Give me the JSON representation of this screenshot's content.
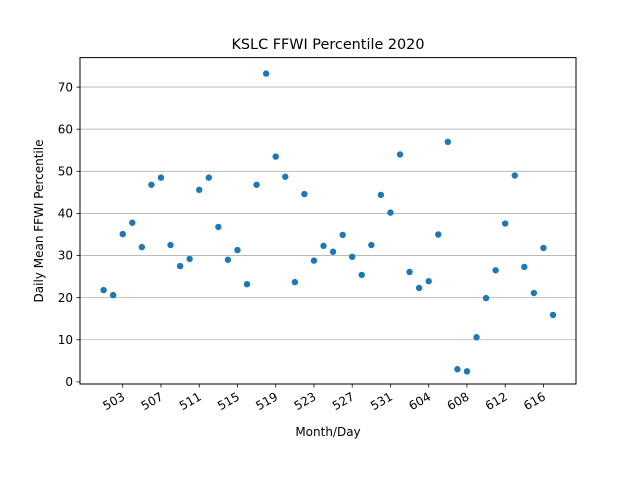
{
  "chart_data": {
    "type": "scatter",
    "title": "KSLC FFWI Percentile 2020",
    "xlabel": "Month/Day",
    "ylabel": "Daily Mean FFWI Percentile",
    "x_tick_labels": [
      "503",
      "507",
      "511",
      "515",
      "519",
      "523",
      "527",
      "531",
      "604",
      "608",
      "612",
      "616"
    ],
    "y_ticks": [
      0,
      10,
      20,
      30,
      40,
      50,
      60,
      70
    ],
    "ylim": [
      -0.5,
      77
    ],
    "grid": "horizontal",
    "marker_color": "#1f77b4",
    "series": [
      {
        "x": [
          "501",
          "502",
          "503",
          "504",
          "505",
          "506",
          "507",
          "508",
          "509",
          "510",
          "511",
          "512",
          "513",
          "514",
          "515",
          "516",
          "517",
          "518",
          "519",
          "520",
          "521",
          "522",
          "523",
          "524",
          "525",
          "526",
          "527",
          "528",
          "529",
          "530",
          "531",
          "601",
          "602",
          "603",
          "604",
          "605",
          "606",
          "607",
          "608",
          "609",
          "610",
          "611",
          "612",
          "613",
          "614",
          "615",
          "616",
          "617"
        ],
        "values": [
          21.8,
          20.6,
          35.1,
          37.8,
          32.0,
          46.8,
          48.5,
          32.5,
          27.5,
          29.2,
          45.6,
          48.5,
          36.8,
          29.0,
          31.3,
          23.2,
          46.8,
          73.2,
          53.5,
          48.7,
          23.7,
          44.6,
          28.8,
          32.3,
          30.9,
          34.9,
          29.7,
          25.4,
          32.5,
          44.4,
          40.2,
          54.0,
          26.1,
          22.3,
          23.9,
          35.0,
          57.0,
          3.0,
          2.5,
          10.6,
          19.9,
          26.5,
          37.6,
          49.0,
          27.3,
          21.1,
          31.8,
          15.9
        ]
      }
    ]
  }
}
